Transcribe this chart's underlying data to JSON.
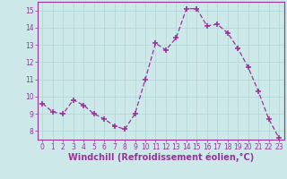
{
  "x": [
    0,
    1,
    2,
    3,
    4,
    5,
    6,
    7,
    8,
    9,
    10,
    11,
    12,
    13,
    14,
    15,
    16,
    17,
    18,
    19,
    20,
    21,
    22,
    23
  ],
  "y": [
    9.6,
    9.1,
    9.0,
    9.8,
    9.5,
    9.0,
    8.7,
    8.3,
    8.1,
    9.0,
    11.0,
    13.1,
    12.7,
    13.4,
    15.1,
    15.1,
    14.1,
    14.2,
    13.7,
    12.8,
    11.7,
    10.3,
    8.7,
    7.6
  ],
  "line_color": "#993399",
  "marker": "+",
  "marker_size": 4,
  "marker_lw": 1.2,
  "bg_color": "#cce8e8",
  "grid_color": "#b0d4d4",
  "xlabel": "Windchill (Refroidissement éolien,°C)",
  "xlabel_color": "#993399",
  "tick_color": "#993399",
  "ylim": [
    7.5,
    15.5
  ],
  "xlim": [
    -0.5,
    23.5
  ],
  "yticks": [
    8,
    9,
    10,
    11,
    12,
    13,
    14,
    15
  ],
  "xticks": [
    0,
    1,
    2,
    3,
    4,
    5,
    6,
    7,
    8,
    9,
    10,
    11,
    12,
    13,
    14,
    15,
    16,
    17,
    18,
    19,
    20,
    21,
    22,
    23
  ],
  "tick_fontsize": 5.5,
  "xlabel_fontsize": 7.0,
  "xlabel_fontweight": "bold"
}
